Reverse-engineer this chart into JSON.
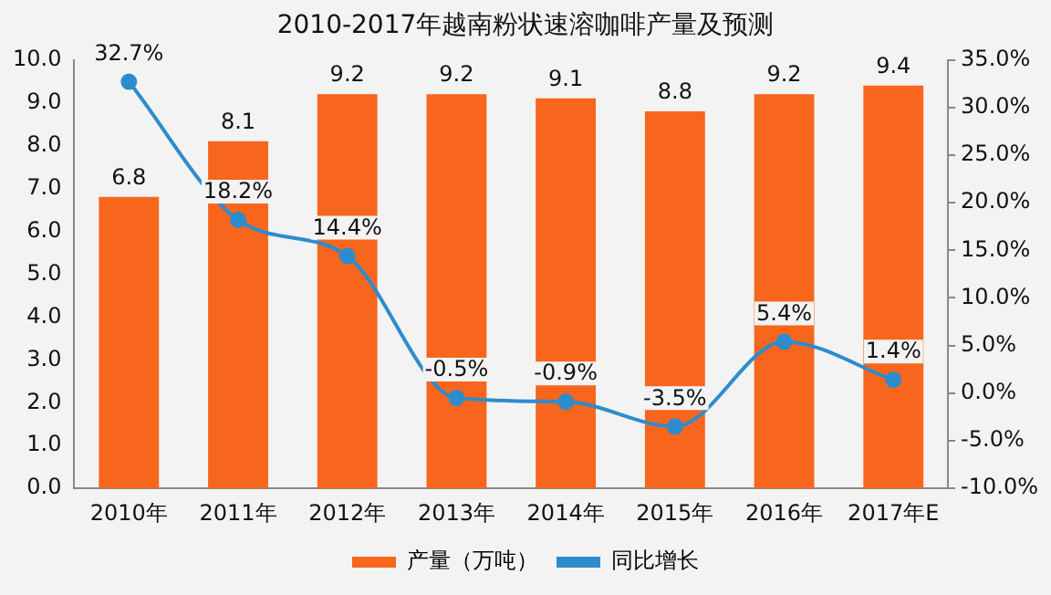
{
  "chart_data": {
    "type": "bar",
    "title": "2010-2017年越南粉状速溶咖啡产量及预测",
    "categories": [
      "2010年",
      "2011年",
      "2012年",
      "2013年",
      "2014年",
      "2015年",
      "2016年",
      "2017年E"
    ],
    "series": [
      {
        "name": "产量（万吨）",
        "color": "#f7661c",
        "values": [
          6.8,
          8.1,
          9.2,
          9.2,
          9.1,
          8.8,
          9.2,
          9.4
        ],
        "value_labels": [
          "6.8",
          "8.1",
          "9.2",
          "9.2",
          "9.1",
          "8.8",
          "9.2",
          "9.4"
        ]
      },
      {
        "name": "同比增长",
        "type": "line",
        "axis": "y2",
        "color": "#2d8ccd",
        "marker": "circle",
        "values": [
          32.7,
          18.2,
          14.4,
          -0.5,
          -0.9,
          -3.5,
          5.4,
          1.4
        ],
        "value_labels": [
          "32.7%",
          "18.2%",
          "14.4%",
          "-0.5%",
          "-0.9%",
          "-3.5%",
          "5.4%",
          "1.4%"
        ]
      }
    ],
    "ylim": [
      0,
      10
    ],
    "yticks": [
      {
        "value": 0,
        "label": "0.0"
      },
      {
        "value": 1,
        "label": "1.0"
      },
      {
        "value": 2,
        "label": "2.0"
      },
      {
        "value": 3,
        "label": "3.0"
      },
      {
        "value": 4,
        "label": "4.0"
      },
      {
        "value": 5,
        "label": "5.0"
      },
      {
        "value": 6,
        "label": "6.0"
      },
      {
        "value": 7,
        "label": "7.0"
      },
      {
        "value": 8,
        "label": "8.0"
      },
      {
        "value": 9,
        "label": "9.0"
      },
      {
        "value": 10,
        "label": "10.0"
      }
    ],
    "y2lim": [
      -10,
      35
    ],
    "y2ticks": [
      {
        "value": -10,
        "label": "-10.0%"
      },
      {
        "value": -5,
        "label": "-5.0%"
      },
      {
        "value": 0,
        "label": "0.0%"
      },
      {
        "value": 5,
        "label": "5.0%"
      },
      {
        "value": 10,
        "label": "10.0%"
      },
      {
        "value": 15,
        "label": "15.0%"
      },
      {
        "value": 20,
        "label": "20.0%"
      },
      {
        "value": 25,
        "label": "25.0%"
      },
      {
        "value": 30,
        "label": "30.0%"
      },
      {
        "value": 35,
        "label": "35.0%"
      }
    ],
    "legend": "bottom"
  }
}
